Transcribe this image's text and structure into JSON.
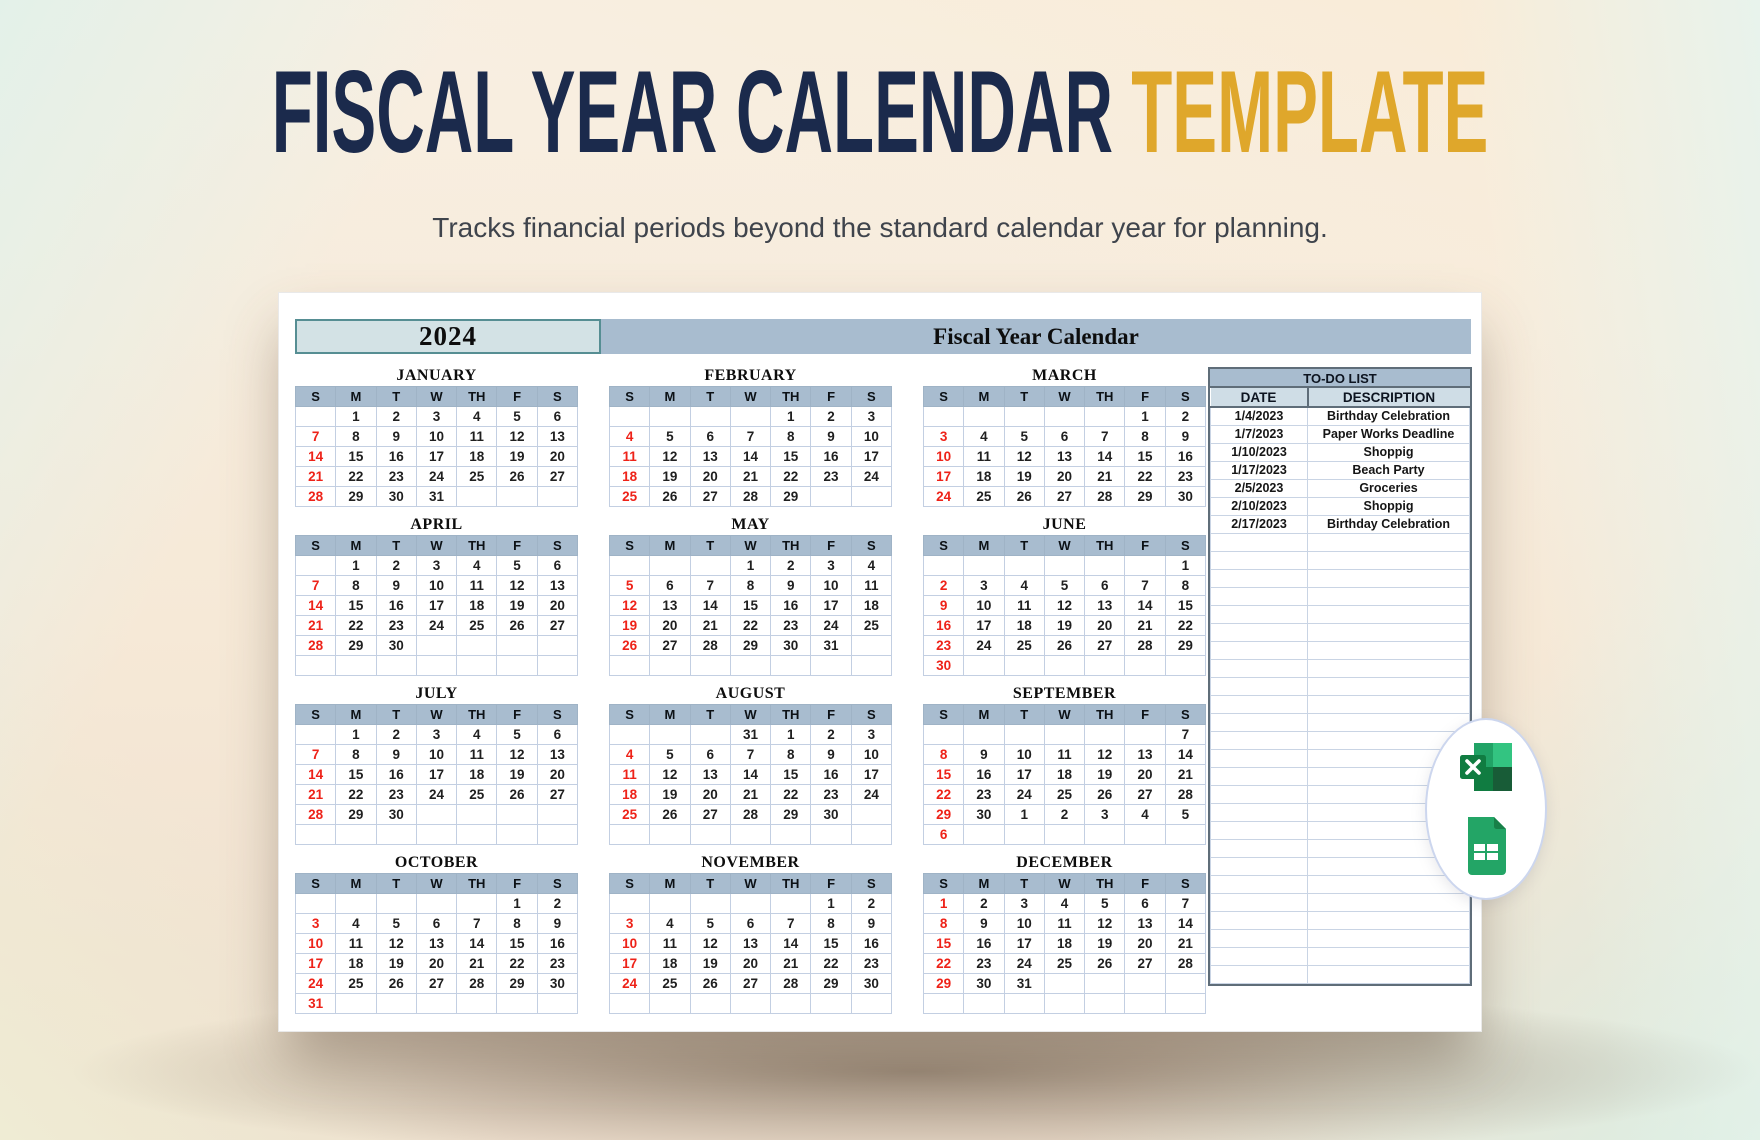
{
  "page": {
    "title_main": "FISCAL YEAR CALENDAR",
    "title_accent": "TEMPLATE",
    "subtitle": "Tracks financial periods beyond the standard calendar year for planning."
  },
  "calendar": {
    "year": "2024",
    "banner_title": "Fiscal Year Calendar",
    "day_headers": [
      "S",
      "M",
      "T",
      "W",
      "TH",
      "F",
      "S"
    ],
    "months": [
      {
        "name": "JANUARY",
        "rows": [
          [
            "",
            "1",
            "2",
            "3",
            "4",
            "5",
            "6"
          ],
          [
            "7",
            "8",
            "9",
            "10",
            "11",
            "12",
            "13"
          ],
          [
            "14",
            "15",
            "16",
            "17",
            "18",
            "19",
            "20"
          ],
          [
            "21",
            "22",
            "23",
            "24",
            "25",
            "26",
            "27"
          ],
          [
            "28",
            "29",
            "30",
            "31",
            "",
            "",
            ""
          ]
        ]
      },
      {
        "name": "FEBRUARY",
        "rows": [
          [
            "",
            "",
            "",
            "",
            "1",
            "2",
            "3"
          ],
          [
            "4",
            "5",
            "6",
            "7",
            "8",
            "9",
            "10"
          ],
          [
            "11",
            "12",
            "13",
            "14",
            "15",
            "16",
            "17"
          ],
          [
            "18",
            "19",
            "20",
            "21",
            "22",
            "23",
            "24"
          ],
          [
            "25",
            "26",
            "27",
            "28",
            "29",
            "",
            ""
          ]
        ]
      },
      {
        "name": "MARCH",
        "rows": [
          [
            "",
            "",
            "",
            "",
            "",
            "1",
            "2"
          ],
          [
            "3",
            "4",
            "5",
            "6",
            "7",
            "8",
            "9"
          ],
          [
            "10",
            "11",
            "12",
            "13",
            "14",
            "15",
            "16"
          ],
          [
            "17",
            "18",
            "19",
            "20",
            "21",
            "22",
            "23"
          ],
          [
            "24",
            "25",
            "26",
            "27",
            "28",
            "29",
            "30"
          ]
        ]
      },
      {
        "name": "APRIL",
        "rows": [
          [
            "",
            "1",
            "2",
            "3",
            "4",
            "5",
            "6"
          ],
          [
            "7",
            "8",
            "9",
            "10",
            "11",
            "12",
            "13"
          ],
          [
            "14",
            "15",
            "16",
            "17",
            "18",
            "19",
            "20"
          ],
          [
            "21",
            "22",
            "23",
            "24",
            "25",
            "26",
            "27"
          ],
          [
            "28",
            "29",
            "30",
            "",
            "",
            "",
            ""
          ],
          [
            "",
            "",
            "",
            "",
            "",
            "",
            ""
          ]
        ]
      },
      {
        "name": "MAY",
        "rows": [
          [
            "",
            "",
            "",
            "1",
            "2",
            "3",
            "4"
          ],
          [
            "5",
            "6",
            "7",
            "8",
            "9",
            "10",
            "11"
          ],
          [
            "12",
            "13",
            "14",
            "15",
            "16",
            "17",
            "18"
          ],
          [
            "19",
            "20",
            "21",
            "22",
            "23",
            "24",
            "25"
          ],
          [
            "26",
            "27",
            "28",
            "29",
            "30",
            "31",
            ""
          ],
          [
            "",
            "",
            "",
            "",
            "",
            "",
            ""
          ]
        ]
      },
      {
        "name": "JUNE",
        "rows": [
          [
            "",
            "",
            "",
            "",
            "",
            "",
            "1"
          ],
          [
            "2",
            "3",
            "4",
            "5",
            "6",
            "7",
            "8"
          ],
          [
            "9",
            "10",
            "11",
            "12",
            "13",
            "14",
            "15"
          ],
          [
            "16",
            "17",
            "18",
            "19",
            "20",
            "21",
            "22"
          ],
          [
            "23",
            "24",
            "25",
            "26",
            "27",
            "28",
            "29"
          ],
          [
            "30",
            "",
            "",
            "",
            "",
            "",
            ""
          ]
        ]
      },
      {
        "name": "JULY",
        "rows": [
          [
            "",
            "1",
            "2",
            "3",
            "4",
            "5",
            "6"
          ],
          [
            "7",
            "8",
            "9",
            "10",
            "11",
            "12",
            "13"
          ],
          [
            "14",
            "15",
            "16",
            "17",
            "18",
            "19",
            "20"
          ],
          [
            "21",
            "22",
            "23",
            "24",
            "25",
            "26",
            "27"
          ],
          [
            "28",
            "29",
            "30",
            "",
            "",
            "",
            ""
          ],
          [
            "",
            "",
            "",
            "",
            "",
            "",
            ""
          ]
        ]
      },
      {
        "name": "AUGUST",
        "rows": [
          [
            "",
            "",
            "",
            "31",
            "1",
            "2",
            "3"
          ],
          [
            "4",
            "5",
            "6",
            "7",
            "8",
            "9",
            "10"
          ],
          [
            "11",
            "12",
            "13",
            "14",
            "15",
            "16",
            "17"
          ],
          [
            "18",
            "19",
            "20",
            "21",
            "22",
            "23",
            "24"
          ],
          [
            "25",
            "26",
            "27",
            "28",
            "29",
            "30",
            ""
          ],
          [
            "",
            "",
            "",
            "",
            "",
            "",
            ""
          ]
        ]
      },
      {
        "name": "SEPTEMBER",
        "rows": [
          [
            "",
            "",
            "",
            "",
            "",
            "",
            "7"
          ],
          [
            "8",
            "9",
            "10",
            "11",
            "12",
            "13",
            "14"
          ],
          [
            "15",
            "16",
            "17",
            "18",
            "19",
            "20",
            "21"
          ],
          [
            "22",
            "23",
            "24",
            "25",
            "26",
            "27",
            "28"
          ],
          [
            "29",
            "30",
            "1",
            "2",
            "3",
            "4",
            "5"
          ],
          [
            "6",
            "",
            "",
            "",
            "",
            "",
            ""
          ]
        ]
      },
      {
        "name": "OCTOBER",
        "rows": [
          [
            "",
            "",
            "",
            "",
            "",
            "1",
            "2"
          ],
          [
            "3",
            "4",
            "5",
            "6",
            "7",
            "8",
            "9"
          ],
          [
            "10",
            "11",
            "12",
            "13",
            "14",
            "15",
            "16"
          ],
          [
            "17",
            "18",
            "19",
            "20",
            "21",
            "22",
            "23"
          ],
          [
            "24",
            "25",
            "26",
            "27",
            "28",
            "29",
            "30"
          ],
          [
            "31",
            "",
            "",
            "",
            "",
            "",
            ""
          ]
        ]
      },
      {
        "name": "NOVEMBER",
        "rows": [
          [
            "",
            "",
            "",
            "",
            "",
            "1",
            "2"
          ],
          [
            "3",
            "4",
            "5",
            "6",
            "7",
            "8",
            "9"
          ],
          [
            "10",
            "11",
            "12",
            "13",
            "14",
            "15",
            "16"
          ],
          [
            "17",
            "18",
            "19",
            "20",
            "21",
            "22",
            "23"
          ],
          [
            "24",
            "25",
            "26",
            "27",
            "28",
            "29",
            "30"
          ],
          [
            "",
            "",
            "",
            "",
            "",
            "",
            ""
          ]
        ]
      },
      {
        "name": "DECEMBER",
        "rows": [
          [
            "1",
            "2",
            "3",
            "4",
            "5",
            "6",
            "7"
          ],
          [
            "8",
            "9",
            "10",
            "11",
            "12",
            "13",
            "14"
          ],
          [
            "15",
            "16",
            "17",
            "18",
            "19",
            "20",
            "21"
          ],
          [
            "22",
            "23",
            "24",
            "25",
            "26",
            "27",
            "28"
          ],
          [
            "29",
            "30",
            "31",
            "",
            "",
            "",
            ""
          ],
          [
            "",
            "",
            "",
            "",
            "",
            "",
            ""
          ]
        ]
      }
    ]
  },
  "todo": {
    "title": "TO-DO LIST",
    "columns": [
      "DATE",
      "DESCRIPTION"
    ],
    "entries": [
      {
        "date": "1/4/2023",
        "description": "Birthday Celebration"
      },
      {
        "date": "1/7/2023",
        "description": "Paper Works Deadline"
      },
      {
        "date": "1/10/2023",
        "description": "Shoppig"
      },
      {
        "date": "1/17/2023",
        "description": "Beach Party"
      },
      {
        "date": "2/5/2023",
        "description": "Groceries"
      },
      {
        "date": "2/10/2023",
        "description": "Shoppig"
      },
      {
        "date": "2/17/2023",
        "description": "Birthday Celebration"
      }
    ],
    "empty_rows": 25
  },
  "icons": {
    "excel": "excel-icon",
    "sheets": "google-sheets-icon"
  },
  "colors": {
    "navy": "#1b2a4c",
    "accent_gold": "#dfa72b",
    "header_blue": "#a8bccf",
    "subheader_blue": "#cfdde6",
    "sunday_red": "#ee2218",
    "year_box_bg": "#d3e2e5",
    "year_box_border": "#568e93"
  }
}
